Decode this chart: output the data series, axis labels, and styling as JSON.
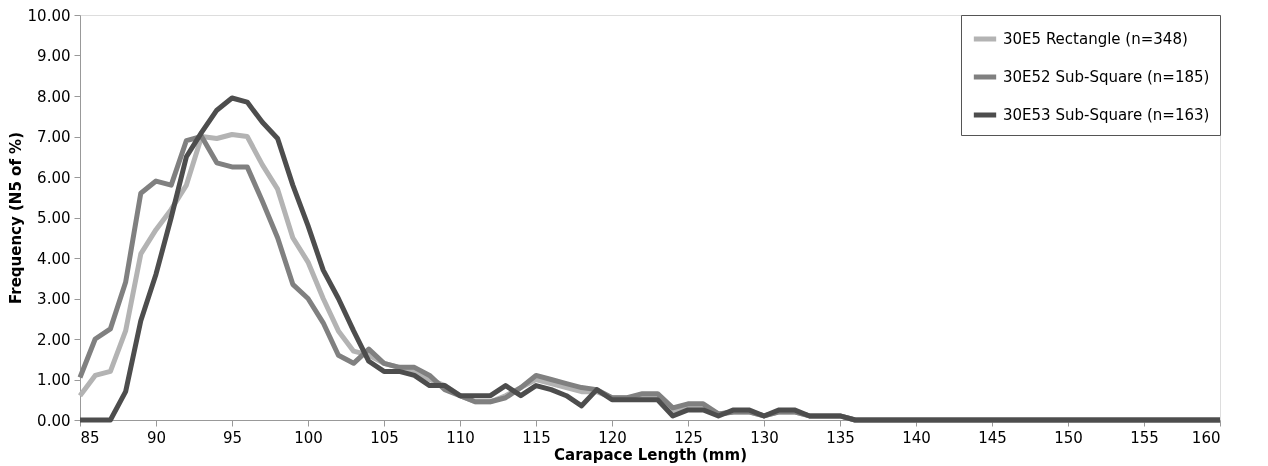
{
  "chart_data": {
    "type": "line",
    "xlabel": "Carapace Length (mm)",
    "ylabel": "Frequency (N5 of %)",
    "x": [
      85,
      86,
      87,
      88,
      89,
      90,
      91,
      92,
      93,
      94,
      95,
      96,
      97,
      98,
      99,
      100,
      101,
      102,
      103,
      104,
      105,
      106,
      107,
      108,
      109,
      110,
      111,
      112,
      113,
      114,
      115,
      116,
      117,
      118,
      119,
      120,
      121,
      122,
      123,
      124,
      125,
      126,
      127,
      128,
      129,
      130,
      131,
      132,
      133,
      134,
      135,
      136,
      137,
      138,
      139,
      140,
      141,
      142,
      143,
      144,
      145,
      146,
      147,
      148,
      149,
      150,
      151,
      152,
      153,
      154,
      155,
      156,
      157,
      158,
      159,
      160
    ],
    "series": [
      {
        "name": "30E5 Rectangle (n=348)",
        "color": "#b3b3b3",
        "values": [
          0.6,
          1.1,
          1.2,
          2.2,
          4.1,
          4.7,
          5.2,
          5.8,
          7.0,
          6.95,
          7.05,
          7.0,
          6.3,
          5.7,
          4.5,
          3.9,
          3.0,
          2.2,
          1.7,
          1.6,
          1.4,
          1.3,
          1.2,
          1.0,
          0.85,
          0.6,
          0.45,
          0.45,
          0.6,
          0.8,
          1.0,
          0.9,
          0.8,
          0.7,
          0.7,
          0.55,
          0.55,
          0.55,
          0.55,
          0.2,
          0.35,
          0.35,
          0.15,
          0.2,
          0.2,
          0.1,
          0.2,
          0.2,
          0.1,
          0.1,
          0.1,
          0,
          0,
          0,
          0,
          0,
          0,
          0,
          0,
          0,
          0,
          0,
          0,
          0,
          0,
          0,
          0,
          0,
          0,
          0,
          0,
          0,
          0,
          0,
          0,
          0
        ]
      },
      {
        "name": "30E52 Sub-Square (n=185)",
        "color": "#808080",
        "values": [
          1.05,
          2.0,
          2.25,
          3.4,
          5.6,
          5.9,
          5.8,
          6.9,
          7.0,
          6.35,
          6.25,
          6.25,
          5.4,
          4.5,
          3.35,
          3.0,
          2.4,
          1.6,
          1.4,
          1.75,
          1.4,
          1.3,
          1.3,
          1.1,
          0.75,
          0.6,
          0.45,
          0.45,
          0.55,
          0.8,
          1.1,
          1.0,
          0.9,
          0.8,
          0.75,
          0.55,
          0.55,
          0.65,
          0.65,
          0.3,
          0.4,
          0.4,
          0.15,
          0.2,
          0.2,
          0.1,
          0.2,
          0.2,
          0.1,
          0.1,
          0.1,
          0,
          0,
          0,
          0,
          0,
          0,
          0,
          0,
          0,
          0,
          0,
          0,
          0,
          0,
          0,
          0,
          0,
          0,
          0,
          0,
          0,
          0,
          0,
          0,
          0
        ]
      },
      {
        "name": "30E53 Sub-Square (n=163)",
        "color": "#4d4d4d",
        "values": [
          0,
          0,
          0,
          0.7,
          2.45,
          3.6,
          5.0,
          6.5,
          7.1,
          7.65,
          7.95,
          7.85,
          7.35,
          6.95,
          5.8,
          4.8,
          3.7,
          3.0,
          2.2,
          1.45,
          1.2,
          1.2,
          1.1,
          0.85,
          0.85,
          0.6,
          0.6,
          0.6,
          0.85,
          0.6,
          0.85,
          0.75,
          0.6,
          0.35,
          0.75,
          0.5,
          0.5,
          0.5,
          0.5,
          0.1,
          0.25,
          0.25,
          0.1,
          0.25,
          0.25,
          0.1,
          0.25,
          0.25,
          0.1,
          0.1,
          0.1,
          0,
          0,
          0,
          0,
          0,
          0,
          0,
          0,
          0,
          0,
          0,
          0,
          0,
          0,
          0,
          0,
          0,
          0,
          0,
          0,
          0,
          0,
          0,
          0,
          0
        ]
      }
    ],
    "xlim": [
      85,
      160
    ],
    "xticks": [
      85,
      90,
      95,
      100,
      105,
      110,
      115,
      120,
      125,
      130,
      135,
      140,
      145,
      150,
      155,
      160
    ],
    "ylim": [
      0,
      10
    ],
    "yticks": [
      {
        "value": 0,
        "label": "0.00"
      },
      {
        "value": 1,
        "label": "1.00"
      },
      {
        "value": 2,
        "label": "2.00"
      },
      {
        "value": 3,
        "label": "3.00"
      },
      {
        "value": 4,
        "label": "4.00"
      },
      {
        "value": 5,
        "label": "5.00"
      },
      {
        "value": 6,
        "label": "6.00"
      },
      {
        "value": 7,
        "label": "7.00"
      },
      {
        "value": 8,
        "label": "8.00"
      },
      {
        "value": 9,
        "label": "9.00"
      },
      {
        "value": 10,
        "label": "10.00"
      }
    ],
    "grid": false,
    "legend": "top right",
    "marker": "none",
    "line_style": "solid"
  }
}
